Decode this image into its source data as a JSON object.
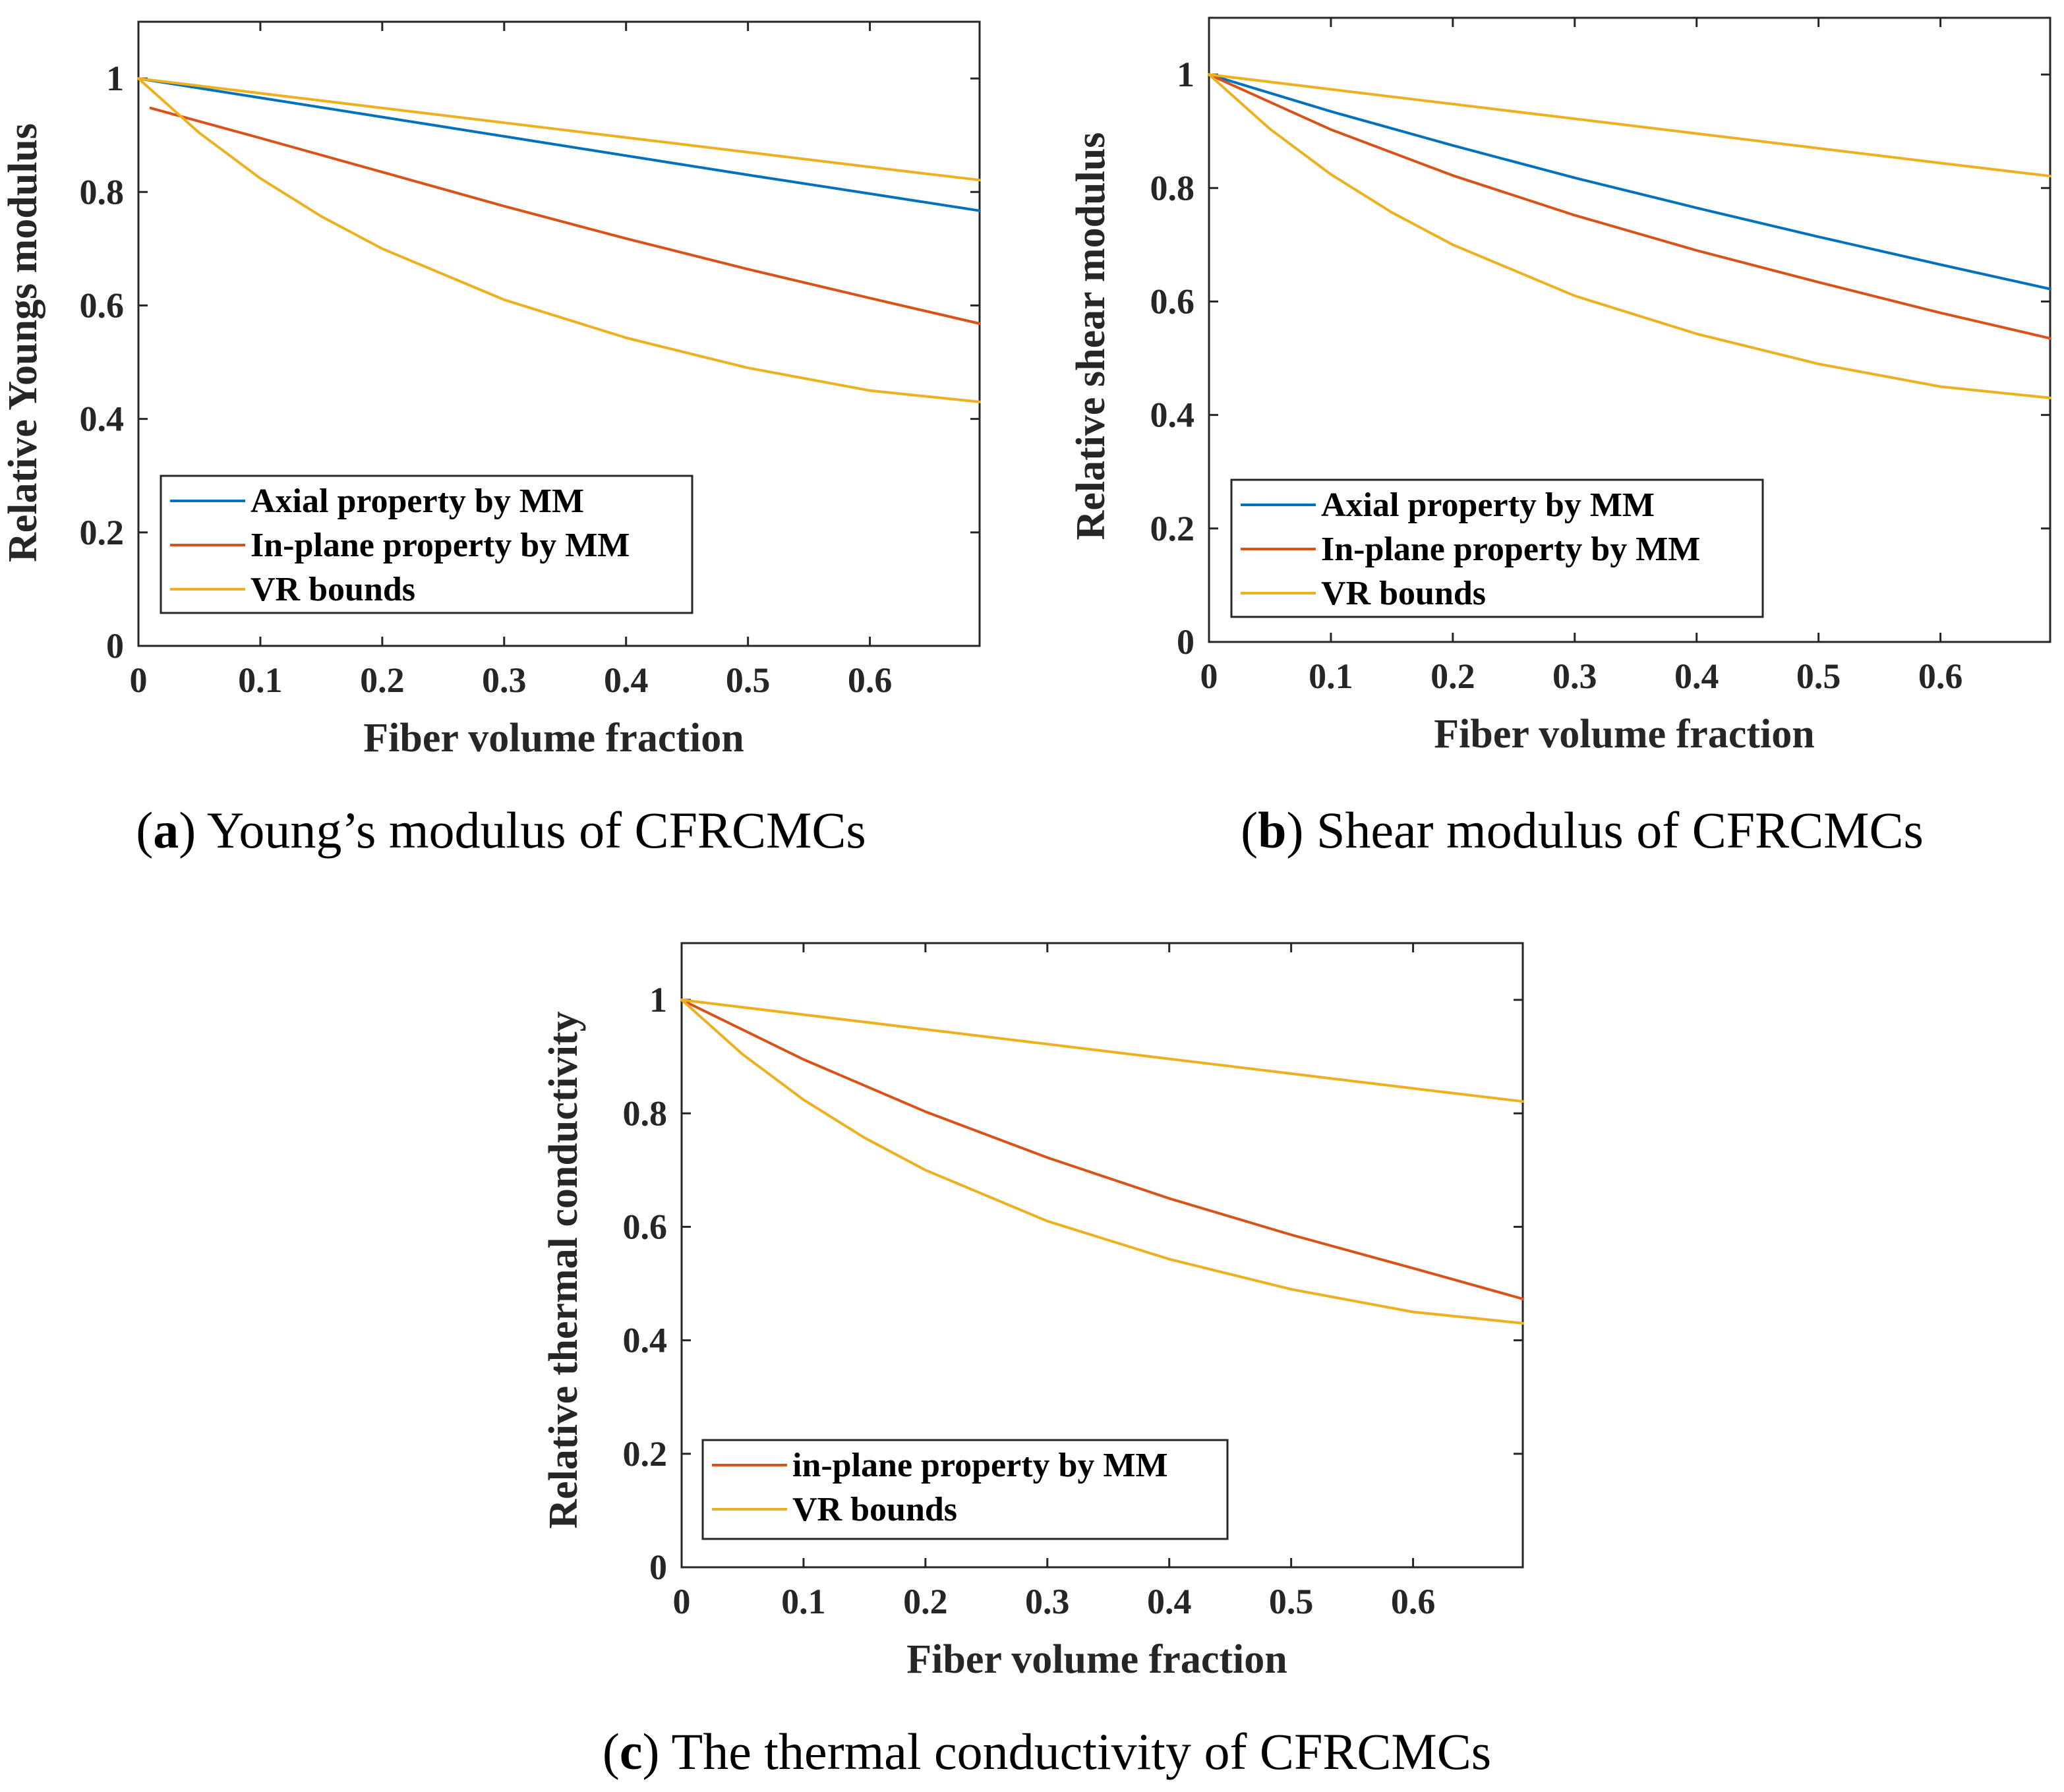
{
  "chart_data": [
    {
      "id": "a",
      "type": "line",
      "caption_letter": "a",
      "caption_text": " Young’s modulus of CFRCMCs",
      "xlabel": "Fiber volume fraction",
      "ylabel": "Relative Youngs modulus",
      "xlim": [
        0,
        0.69
      ],
      "ylim": [
        0,
        1.1
      ],
      "xticks": [
        0,
        0.1,
        0.2,
        0.3,
        0.4,
        0.5,
        0.6
      ],
      "xtick_labels": [
        "0",
        "0.1",
        "0.2",
        "0.3",
        "0.4",
        "0.5",
        "0.6"
      ],
      "yticks": [
        0,
        0.2,
        0.4,
        0.6,
        0.8,
        1
      ],
      "ytick_labels": [
        "0",
        "0.2",
        "0.4",
        "0.6",
        "0.8",
        "1"
      ],
      "legend_position": "bottom-left",
      "series": [
        {
          "name": "Axial property by MM",
          "color": "#0072BD",
          "show_in_legend": true,
          "x": [
            0,
            0.1,
            0.2,
            0.3,
            0.4,
            0.5,
            0.6,
            0.69
          ],
          "y": [
            1.0,
            0.966,
            0.932,
            0.898,
            0.864,
            0.83,
            0.797,
            0.767
          ]
        },
        {
          "name": "In-plane property by MM",
          "color": "#D95319",
          "show_in_legend": true,
          "x": [
            0.01,
            0.1,
            0.2,
            0.3,
            0.4,
            0.5,
            0.6,
            0.69
          ],
          "y": [
            0.948,
            0.895,
            0.835,
            0.775,
            0.718,
            0.664,
            0.613,
            0.568
          ]
        },
        {
          "name": "VR bounds",
          "color": "#EDB120",
          "show_in_legend": true,
          "x": [
            0,
            0.1,
            0.2,
            0.3,
            0.4,
            0.5,
            0.6,
            0.69
          ],
          "y": [
            1.0,
            0.974,
            0.948,
            0.922,
            0.896,
            0.87,
            0.844,
            0.821
          ]
        },
        {
          "name": "VR bounds (lower)",
          "color": "#EDB120",
          "show_in_legend": false,
          "x": [
            0,
            0.05,
            0.1,
            0.15,
            0.2,
            0.3,
            0.4,
            0.5,
            0.6,
            0.69
          ],
          "y": [
            1.0,
            0.904,
            0.824,
            0.757,
            0.7,
            0.61,
            0.543,
            0.49,
            0.45,
            0.43
          ]
        }
      ]
    },
    {
      "id": "b",
      "type": "line",
      "caption_letter": "b",
      "caption_text": " Shear modulus of CFRCMCs",
      "xlabel": "Fiber volume fraction",
      "ylabel": "Relative shear modulus",
      "xlim": [
        0,
        0.69
      ],
      "ylim": [
        0,
        1.1
      ],
      "xticks": [
        0,
        0.1,
        0.2,
        0.3,
        0.4,
        0.5,
        0.6
      ],
      "xtick_labels": [
        "0",
        "0.1",
        "0.2",
        "0.3",
        "0.4",
        "0.5",
        "0.6"
      ],
      "yticks": [
        0,
        0.2,
        0.4,
        0.6,
        0.8,
        1
      ],
      "ytick_labels": [
        "0",
        "0.2",
        "0.4",
        "0.6",
        "0.8",
        "1"
      ],
      "legend_position": "bottom-left",
      "series": [
        {
          "name": "Axial property by MM",
          "color": "#0072BD",
          "show_in_legend": true,
          "x": [
            0,
            0.1,
            0.2,
            0.3,
            0.4,
            0.5,
            0.6,
            0.69
          ],
          "y": [
            1.0,
            0.935,
            0.875,
            0.818,
            0.765,
            0.714,
            0.665,
            0.622
          ]
        },
        {
          "name": "In-plane property by MM",
          "color": "#D95319",
          "show_in_legend": true,
          "x": [
            0,
            0.1,
            0.2,
            0.3,
            0.4,
            0.5,
            0.6,
            0.69
          ],
          "y": [
            1.0,
            0.903,
            0.822,
            0.752,
            0.69,
            0.634,
            0.58,
            0.535
          ]
        },
        {
          "name": "VR bounds",
          "color": "#EDB120",
          "show_in_legend": true,
          "x": [
            0,
            0.1,
            0.2,
            0.3,
            0.4,
            0.5,
            0.6,
            0.69
          ],
          "y": [
            1.0,
            0.974,
            0.948,
            0.922,
            0.896,
            0.87,
            0.844,
            0.821
          ]
        },
        {
          "name": "VR bounds (lower)",
          "color": "#EDB120",
          "show_in_legend": false,
          "x": [
            0,
            0.05,
            0.1,
            0.15,
            0.2,
            0.3,
            0.4,
            0.5,
            0.6,
            0.69
          ],
          "y": [
            1.0,
            0.904,
            0.824,
            0.757,
            0.7,
            0.61,
            0.543,
            0.49,
            0.45,
            0.43
          ]
        }
      ]
    },
    {
      "id": "c",
      "type": "line",
      "caption_letter": "c",
      "caption_text": " The thermal conductivity of CFRCMCs",
      "xlabel": "Fiber volume fraction",
      "ylabel": "Relative thermal conductivity",
      "xlim": [
        0,
        0.69
      ],
      "ylim": [
        0,
        1.1
      ],
      "xticks": [
        0,
        0.1,
        0.2,
        0.3,
        0.4,
        0.5,
        0.6
      ],
      "xtick_labels": [
        "0",
        "0.1",
        "0.2",
        "0.3",
        "0.4",
        "0.5",
        "0.6"
      ],
      "yticks": [
        0,
        0.2,
        0.4,
        0.6,
        0.8,
        1
      ],
      "ytick_labels": [
        "0",
        "0.2",
        "0.4",
        "0.6",
        "0.8",
        "1"
      ],
      "legend_position": "bottom-left",
      "series": [
        {
          "name": "in-plane property by MM",
          "color": "#D95319",
          "show_in_legend": true,
          "x": [
            0,
            0.1,
            0.2,
            0.3,
            0.4,
            0.5,
            0.6,
            0.69
          ],
          "y": [
            1.0,
            0.895,
            0.803,
            0.722,
            0.65,
            0.586,
            0.527,
            0.473
          ]
        },
        {
          "name": "VR bounds",
          "color": "#EDB120",
          "show_in_legend": true,
          "x": [
            0,
            0.1,
            0.2,
            0.3,
            0.4,
            0.5,
            0.6,
            0.69
          ],
          "y": [
            1.0,
            0.974,
            0.948,
            0.922,
            0.896,
            0.87,
            0.844,
            0.821
          ]
        },
        {
          "name": "VR bounds (lower)",
          "color": "#EDB120",
          "show_in_legend": false,
          "x": [
            0,
            0.05,
            0.1,
            0.15,
            0.2,
            0.3,
            0.4,
            0.5,
            0.6,
            0.69
          ],
          "y": [
            1.0,
            0.904,
            0.824,
            0.757,
            0.7,
            0.61,
            0.543,
            0.49,
            0.45,
            0.43
          ]
        }
      ]
    }
  ]
}
